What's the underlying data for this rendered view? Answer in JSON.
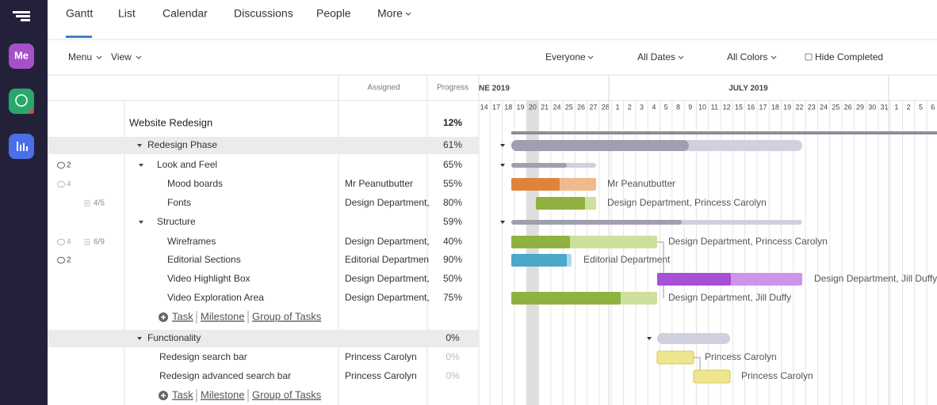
{
  "nav": {
    "me": "Me",
    "tabs": [
      "Gantt",
      "List",
      "Calendar",
      "Discussions",
      "People",
      "More"
    ]
  },
  "toolbar": {
    "menu": "Menu",
    "view": "View",
    "everyone": "Everyone",
    "dates": "All Dates",
    "colors": "All Colors",
    "hide": "Hide Completed"
  },
  "table": {
    "headers": {
      "assigned": "Assigned",
      "progress": "Progress"
    },
    "project": {
      "name": "Website Redesign",
      "progress": "12%"
    },
    "rows": [
      {
        "name": "Redesign Phase",
        "progress": "61%"
      },
      {
        "name": "Look and Feel",
        "progress": "65%",
        "comments": "2"
      },
      {
        "name": "Mood boards",
        "assigned": "Mr Peanutbutter",
        "progress": "55%",
        "comments": "4"
      },
      {
        "name": "Fonts",
        "assigned": "Design Department,",
        "progress": "80%",
        "checklist": "4/5"
      },
      {
        "name": "Structure",
        "progress": "59%"
      },
      {
        "name": "Wireframes",
        "assigned": "Design Department,",
        "progress": "40%",
        "comments": "4",
        "checklist": "6/9"
      },
      {
        "name": "Editorial Sections",
        "assigned": "Editorial Departmen",
        "progress": "90%",
        "comments": "2"
      },
      {
        "name": "Video Highlight Box",
        "assigned": "Design Department,",
        "progress": "50%"
      },
      {
        "name": "Video Exploration Area",
        "assigned": "Design Department,",
        "progress": "75%"
      },
      {
        "name": "Functionality",
        "progress": "0%"
      },
      {
        "name": "Redesign search bar",
        "assigned": "Princess Carolyn",
        "progress": "0%"
      },
      {
        "name": "Redesign advanced search bar",
        "assigned": "Princess Carolyn",
        "progress": "0%"
      }
    ],
    "add": {
      "task": "Task",
      "milestone": "Milestone",
      "group": "Group of Tasks"
    }
  },
  "gantt": {
    "months": [
      "NE 2019",
      "JULY 2019"
    ],
    "days": [
      "14",
      "17",
      "18",
      "19",
      "20",
      "21",
      "24",
      "25",
      "26",
      "27",
      "28",
      "1",
      "2",
      "3",
      "4",
      "5",
      "8",
      "9",
      "10",
      "11",
      "12",
      "15",
      "16",
      "17",
      "18",
      "19",
      "22",
      "23",
      "24",
      "25",
      "26",
      "29",
      "30",
      "31",
      "1",
      "2",
      "5",
      "6"
    ],
    "labels": [
      "Mr Peanutbutter",
      "Design Department, Princess Carolyn",
      "Design Department, Princess Carolyn",
      "Editorial Department",
      "Design Department, Jill Duffy",
      "Design Department, Jill Duffy",
      "Princess Carolyn",
      "Princess Carolyn"
    ]
  }
}
